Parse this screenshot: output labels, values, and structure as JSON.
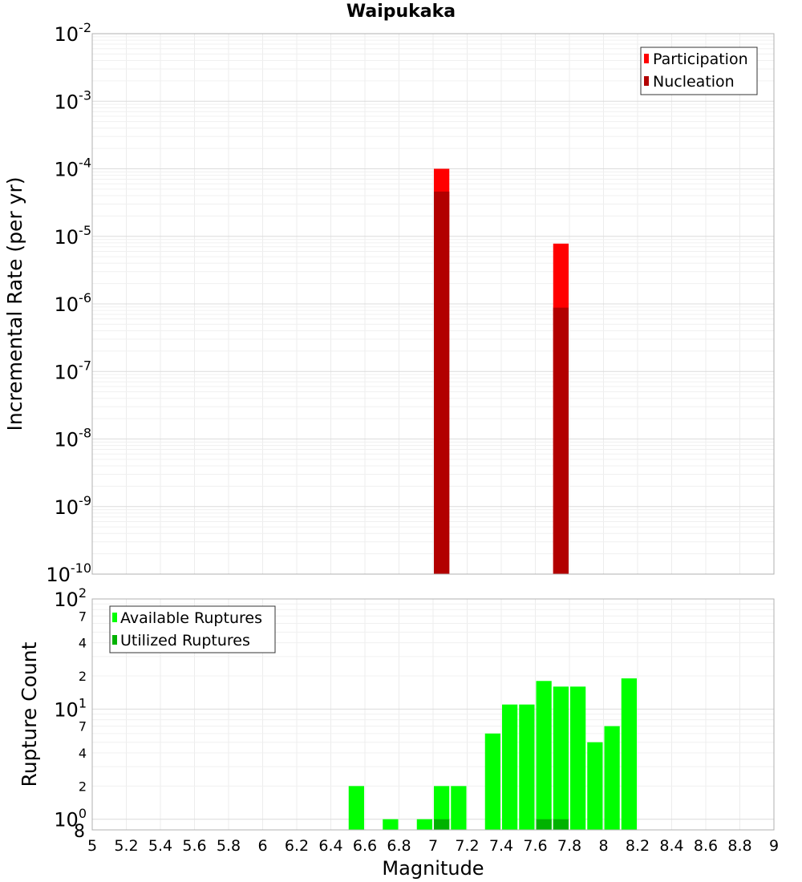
{
  "chart_data": [
    {
      "type": "bar",
      "title": "Waipukaka",
      "ylabel": "Incremental Rate (per yr)",
      "yscale": "log",
      "ylim": [
        1e-10,
        0.01
      ],
      "xlim": [
        5,
        9
      ],
      "y_tick_labels": [
        {
          "base": "10",
          "exp": "-2"
        },
        {
          "base": "10",
          "exp": "-3"
        },
        {
          "base": "10",
          "exp": "-4"
        },
        {
          "base": "10",
          "exp": "-5"
        },
        {
          "base": "10",
          "exp": "-6"
        },
        {
          "base": "10",
          "exp": "-7"
        },
        {
          "base": "10",
          "exp": "-8"
        },
        {
          "base": "10",
          "exp": "-9"
        },
        {
          "base": "10",
          "exp": "-10"
        }
      ],
      "grid": true,
      "legend_position": "top-right",
      "series": [
        {
          "name": "Participation",
          "color": "#ff0000",
          "points": [
            {
              "x": 7.05,
              "y": 0.0001
            },
            {
              "x": 7.75,
              "y": 7.8e-06
            }
          ]
        },
        {
          "name": "Nucleation",
          "color": "#b20000",
          "points": [
            {
              "x": 7.05,
              "y": 4.6e-05
            },
            {
              "x": 7.75,
              "y": 8.8e-07
            }
          ]
        }
      ]
    },
    {
      "type": "bar",
      "ylabel": "Rupture Count",
      "xlabel": "Magnitude",
      "yscale": "log",
      "ylim": [
        0.8,
        100
      ],
      "xlim": [
        5,
        9
      ],
      "x_tick_labels": [
        "5",
        "5.2",
        "5.4",
        "5.6",
        "5.8",
        "6",
        "6.2",
        "6.4",
        "6.6",
        "6.8",
        "7",
        "7.2",
        "7.4",
        "7.6",
        "7.8",
        "8",
        "8.2",
        "8.4",
        "8.6",
        "8.8",
        "9"
      ],
      "y_tick_labels": [
        {
          "base": "10",
          "exp": "2"
        },
        {
          "base": "7",
          "exp": ""
        },
        {
          "base": "4",
          "exp": ""
        },
        {
          "base": "2",
          "exp": ""
        },
        {
          "base": "10",
          "exp": "1"
        },
        {
          "base": "7",
          "exp": ""
        },
        {
          "base": "4",
          "exp": ""
        },
        {
          "base": "2",
          "exp": ""
        },
        {
          "base": "10",
          "exp": "0"
        },
        {
          "base": "8",
          "exp": ""
        }
      ],
      "grid": true,
      "legend_position": "top-left",
      "series": [
        {
          "name": "Available Ruptures",
          "color": "#00ff00",
          "points": [
            {
              "x": 6.55,
              "y": 2
            },
            {
              "x": 6.75,
              "y": 1
            },
            {
              "x": 6.95,
              "y": 1
            },
            {
              "x": 7.05,
              "y": 2
            },
            {
              "x": 7.15,
              "y": 2
            },
            {
              "x": 7.35,
              "y": 6
            },
            {
              "x": 7.45,
              "y": 11
            },
            {
              "x": 7.55,
              "y": 11
            },
            {
              "x": 7.65,
              "y": 18
            },
            {
              "x": 7.75,
              "y": 16
            },
            {
              "x": 7.85,
              "y": 16
            },
            {
              "x": 7.95,
              "y": 5
            },
            {
              "x": 8.05,
              "y": 7
            },
            {
              "x": 8.15,
              "y": 19
            }
          ]
        },
        {
          "name": "Utilized Ruptures",
          "color": "#00b200",
          "points": [
            {
              "x": 7.05,
              "y": 1
            },
            {
              "x": 7.65,
              "y": 1
            },
            {
              "x": 7.75,
              "y": 1
            }
          ]
        }
      ]
    }
  ]
}
